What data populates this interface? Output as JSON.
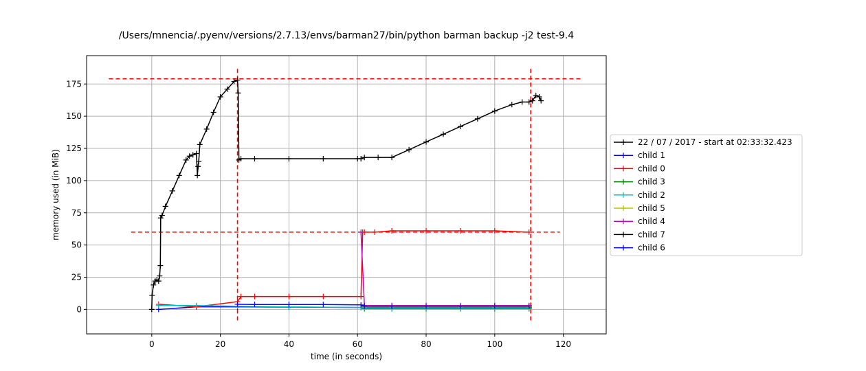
{
  "chart_data": {
    "type": "line",
    "title": "/Users/mnencia/.pyenv/versions/2.7.13/envs/barman27/bin/python barman backup -j2 test-9.4",
    "xlabel": "time (in seconds)",
    "ylabel": "memory used (in MiB)",
    "xlim": [
      -19,
      132.5
    ],
    "ylim": [
      -19,
      197
    ],
    "xticks": [
      0,
      20,
      40,
      60,
      80,
      100,
      120
    ],
    "yticks": [
      0,
      25,
      50,
      75,
      100,
      125,
      150,
      175
    ],
    "grid": true,
    "legend_position": "outside-right",
    "marker": "+",
    "reference_lines": [
      {
        "orientation": "horizontal",
        "y": 179,
        "x_range": [
          -12.5,
          125.5
        ],
        "color": "#ff0000",
        "style": "dashed"
      },
      {
        "orientation": "horizontal",
        "y": 60,
        "x_range": [
          -6,
          119
        ],
        "color": "#ff0000",
        "style": "dashed"
      },
      {
        "orientation": "vertical",
        "x": 25,
        "y_range": [
          -8.5,
          187.5
        ],
        "color": "#ff0000",
        "style": "dashed"
      },
      {
        "orientation": "vertical",
        "x": 110.5,
        "y_range": [
          -8.5,
          187.5
        ],
        "color": "#ff0000",
        "style": "dashed"
      }
    ],
    "series": [
      {
        "name": "22 / 07 / 2017 - start at 02:33:32.423",
        "color": "#000000",
        "x": [
          0,
          0.1,
          0.5,
          1,
          1.5,
          2,
          2.3,
          2.5,
          2.6,
          3,
          4,
          6,
          8,
          10,
          11,
          12,
          13,
          13.3,
          13.5,
          13.7,
          14,
          16,
          18,
          20,
          22,
          24,
          25,
          25.2,
          25.4,
          26,
          30,
          40,
          50,
          60,
          61,
          62,
          66,
          70,
          75,
          80,
          85,
          90,
          95,
          100,
          105,
          108,
          110,
          111,
          112,
          113,
          113.5
        ],
        "y": [
          0,
          11,
          19,
          22,
          23,
          22,
          26,
          34,
          71,
          73,
          80,
          92,
          104,
          116,
          119,
          120,
          121,
          104,
          111,
          115,
          128,
          140,
          153,
          165,
          171,
          177,
          178,
          168,
          116,
          117,
          117,
          117,
          117,
          117,
          117,
          118,
          118,
          118,
          124,
          130,
          136,
          142,
          148,
          154,
          159,
          161,
          161,
          162,
          166,
          165,
          162
        ]
      },
      {
        "name": "child 1",
        "color": "#0000ff",
        "x": [
          2,
          13,
          25,
          40,
          61,
          62,
          70,
          80,
          90,
          100,
          110
        ],
        "y": [
          0,
          2,
          2,
          1.8,
          1.5,
          1.5,
          1.5,
          1.5,
          1.5,
          1.5,
          1.5
        ]
      },
      {
        "name": "child 0",
        "color": "#ff0000",
        "x": [
          2,
          13,
          25,
          26,
          30,
          40,
          50,
          61,
          61.5,
          62,
          65,
          70,
          80,
          90,
          100,
          110
        ],
        "y": [
          4,
          2,
          6,
          10,
          10,
          10,
          10,
          10,
          60,
          60,
          60,
          61,
          61,
          61,
          61,
          60
        ]
      },
      {
        "name": "child 3",
        "color": "#008000",
        "x": [
          62,
          70,
          80,
          90,
          100,
          110
        ],
        "y": [
          0.5,
          0.5,
          0.5,
          0.5,
          0.5,
          0.5
        ]
      },
      {
        "name": "child 2",
        "color": "#00bfbf",
        "x": [
          2,
          13,
          25,
          40,
          61,
          62,
          70,
          80,
          90,
          100,
          110
        ],
        "y": [
          3,
          3,
          2.5,
          2,
          1.5,
          1,
          1,
          1,
          1,
          1,
          1
        ]
      },
      {
        "name": "child 5",
        "color": "#bfbf00",
        "x": [
          62,
          70,
          80,
          90,
          100,
          110
        ],
        "y": [
          2,
          2,
          2,
          2,
          2,
          2
        ]
      },
      {
        "name": "child 4",
        "color": "#bf00bf",
        "x": [
          61,
          62,
          70,
          80,
          90,
          100,
          110
        ],
        "y": [
          60,
          3,
          3,
          3,
          3,
          3,
          3
        ]
      },
      {
        "name": "child 7",
        "color": "#000000",
        "x": [],
        "y": []
      },
      {
        "name": "child 6",
        "color": "#0000ff",
        "x": [
          25,
          30,
          40,
          50,
          61,
          62,
          70,
          80,
          90,
          100,
          110
        ],
        "y": [
          4,
          3.8,
          3.8,
          3.8,
          3.5,
          2.5,
          2.5,
          2.5,
          2.5,
          2.5,
          2.5
        ]
      }
    ]
  }
}
